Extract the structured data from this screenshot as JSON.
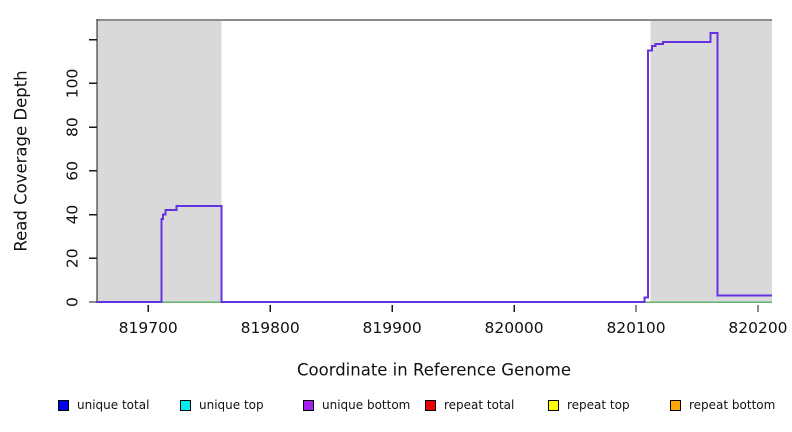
{
  "chart_data": {
    "type": "line",
    "title": "",
    "xlabel": "Coordinate in Reference Genome",
    "ylabel": "Read Coverage Depth",
    "xlim": [
      819658,
      820211.5
    ],
    "ylim": [
      0,
      129
    ],
    "grid": false,
    "axis_color": "#1a1a1a",
    "plot_top_border_color": "#8c8c8c",
    "x_ticks": {
      "values": [
        819700,
        819800,
        819900,
        820000,
        820100,
        820200
      ],
      "labels": [
        "819700",
        "819800",
        "819900",
        "820000",
        "820100",
        "820200"
      ]
    },
    "y_ticks": {
      "values": [
        0,
        20,
        40,
        60,
        80,
        100,
        120
      ],
      "labels": [
        "0",
        "20",
        "40",
        "60",
        "80",
        "100",
        ""
      ]
    },
    "shaded_regions": [
      {
        "name": "left-gray-region",
        "x0": 819658,
        "x1": 819760,
        "color": "#d9d9d9"
      },
      {
        "name": "right-gray-region",
        "x0": 820112,
        "x1": 820211.5,
        "color": "#d9d9d9"
      }
    ],
    "series": [
      {
        "name": "baseline-green",
        "color": "#64b46e",
        "width": 1.5,
        "points": [
          [
            819658,
            0
          ],
          [
            820211.5,
            0
          ]
        ]
      },
      {
        "name": "unique-bottom-coverage",
        "color": "#6532e2",
        "width": 2,
        "points": [
          [
            819658,
            0
          ],
          [
            819711,
            0
          ],
          [
            819711,
            38
          ],
          [
            819712,
            38
          ],
          [
            819712,
            40
          ],
          [
            819714,
            40
          ],
          [
            819714,
            42
          ],
          [
            819723,
            42
          ],
          [
            819723,
            44
          ],
          [
            819760,
            44
          ],
          [
            819760,
            0
          ],
          [
            820107,
            0
          ],
          [
            820107,
            2
          ],
          [
            820110,
            2
          ],
          [
            820110,
            115
          ],
          [
            820113,
            115
          ],
          [
            820113,
            117
          ],
          [
            820116,
            117
          ],
          [
            820116,
            118
          ],
          [
            820122,
            118
          ],
          [
            820122,
            119
          ],
          [
            820161,
            119
          ],
          [
            820161,
            123
          ],
          [
            820167,
            123
          ],
          [
            820167,
            3
          ],
          [
            820211.5,
            3
          ]
        ]
      }
    ],
    "legend": {
      "position": "bottom",
      "items": [
        {
          "label": "unique total",
          "color": "#0000ee"
        },
        {
          "label": "unique top",
          "color": "#00eeee"
        },
        {
          "label": "unique bottom",
          "color": "#a020f0"
        },
        {
          "label": "repeat total",
          "color": "#ee0000"
        },
        {
          "label": "repeat top",
          "color": "#ffff00"
        },
        {
          "label": "repeat bottom",
          "color": "#ffa500"
        }
      ]
    }
  }
}
